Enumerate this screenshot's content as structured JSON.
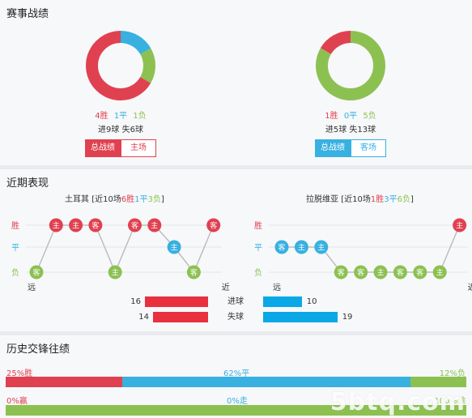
{
  "colors": {
    "win": "#e04150",
    "draw": "#38b0e0",
    "loss": "#8cc152",
    "grey_line": "#bdbdbd"
  },
  "record": {
    "title": "赛事战绩",
    "home": {
      "win": "4胜",
      "draw": "1平",
      "loss": "1负",
      "win_n": 4,
      "draw_n": 1,
      "loss_n": 1,
      "goals": "进9球 失6球",
      "tab_active": "总战绩",
      "tab_inactive": "主场"
    },
    "away": {
      "win": "1胜",
      "draw": "0平",
      "loss": "5负",
      "win_n": 1,
      "draw_n": 0,
      "loss_n": 5,
      "goals": "进5球 失13球",
      "tab_active": "总战绩",
      "tab_inactive": "客场"
    }
  },
  "recent": {
    "title": "近期表现",
    "home": {
      "name": "土耳其",
      "summary_prefix": "[近10场",
      "w": "6胜",
      "d": "1平",
      "l": "3负",
      "summary_suffix": "]",
      "axis": [
        "胜",
        "平",
        "负"
      ],
      "far": "远",
      "near": "近",
      "games": [
        {
          "r": "L",
          "v": "客"
        },
        {
          "r": "W",
          "v": "主"
        },
        {
          "r": "W",
          "v": "主"
        },
        {
          "r": "W",
          "v": "客"
        },
        {
          "r": "L",
          "v": "主"
        },
        {
          "r": "W",
          "v": "客"
        },
        {
          "r": "W",
          "v": "主"
        },
        {
          "r": "D",
          "v": "主"
        },
        {
          "r": "L",
          "v": "客"
        },
        {
          "r": "W",
          "v": "客"
        }
      ]
    },
    "away": {
      "name": "拉脱维亚",
      "summary_prefix": "[近10场",
      "w": "1胜",
      "d": "3平",
      "l": "6负",
      "summary_suffix": "]",
      "axis": [
        "胜",
        "平",
        "负"
      ],
      "far": "远",
      "near": "近",
      "games": [
        {
          "r": "D",
          "v": "客"
        },
        {
          "r": "D",
          "v": "主"
        },
        {
          "r": "D",
          "v": "主"
        },
        {
          "r": "L",
          "v": "客"
        },
        {
          "r": "L",
          "v": "客"
        },
        {
          "r": "L",
          "v": "主"
        },
        {
          "r": "L",
          "v": "客"
        },
        {
          "r": "L",
          "v": "客"
        },
        {
          "r": "L",
          "v": "主"
        },
        {
          "r": "W",
          "v": "主"
        }
      ]
    },
    "goals_for": {
      "label": "进球",
      "home": 16,
      "away": 10
    },
    "goals_against": {
      "label": "失球",
      "home": 14,
      "away": 19
    }
  },
  "history": {
    "title": "历史交锋往绩",
    "row1": {
      "left": "25%胜",
      "mid": "62%平",
      "right": "12%负",
      "w": 25,
      "d": 62,
      "l": 12
    },
    "row2": {
      "left": "0%赢",
      "mid": "0%走",
      "right": "100%输",
      "w": 0,
      "d": 0,
      "l": 100
    }
  },
  "watermark": "5btq.com"
}
